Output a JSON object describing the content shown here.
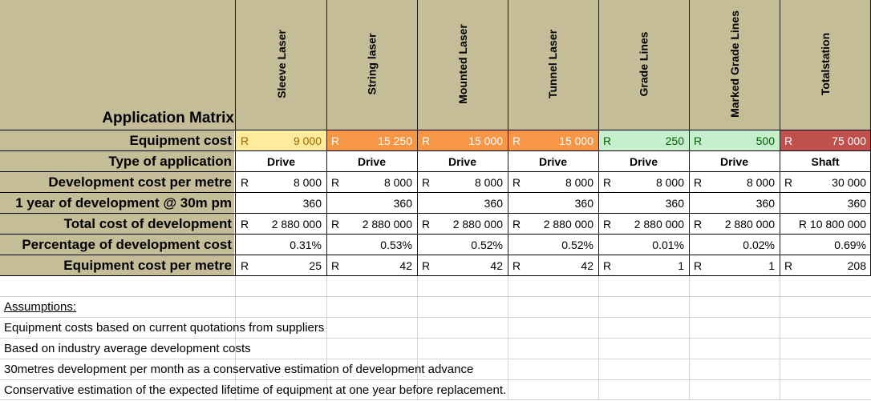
{
  "title": "Application Matrix",
  "columns": [
    {
      "name": "Sleeve Laser",
      "cost_r": "R",
      "cost": "9 000",
      "type": "Drive",
      "dev_r": "R",
      "dev": "8 000",
      "year": "360",
      "total_r": "R",
      "total": "2 880 000",
      "pct": "0.31%",
      "per_r": "R",
      "per": "25",
      "cost_bg": "#ffeb9c",
      "cost_fg": "#9c6500"
    },
    {
      "name": "String laser",
      "cost_r": "R",
      "cost": "15 250",
      "type": "Drive",
      "dev_r": "R",
      "dev": "8 000",
      "year": "360",
      "total_r": "R",
      "total": "2 880 000",
      "pct": "0.53%",
      "per_r": "R",
      "per": "42",
      "cost_bg": "#f79646",
      "cost_fg": "#ffffff"
    },
    {
      "name": "Mounted Laser",
      "cost_r": "R",
      "cost": "15 000",
      "type": "Drive",
      "dev_r": "R",
      "dev": "8 000",
      "year": "360",
      "total_r": "R",
      "total": "2 880 000",
      "pct": "0.52%",
      "per_r": "R",
      "per": "42",
      "cost_bg": "#f79646",
      "cost_fg": "#ffffff"
    },
    {
      "name": "Tunnel Laser",
      "cost_r": "R",
      "cost": "15 000",
      "type": "Drive",
      "dev_r": "R",
      "dev": "8 000",
      "year": "360",
      "total_r": "R",
      "total": "2 880 000",
      "pct": "0.52%",
      "per_r": "R",
      "per": "42",
      "cost_bg": "#f79646",
      "cost_fg": "#ffffff"
    },
    {
      "name": "Grade Lines",
      "cost_r": "R",
      "cost": "250",
      "type": "Drive",
      "dev_r": "R",
      "dev": "8 000",
      "year": "360",
      "total_r": "R",
      "total": "2 880 000",
      "pct": "0.01%",
      "per_r": "R",
      "per": "1",
      "cost_bg": "#c6efce",
      "cost_fg": "#006100"
    },
    {
      "name": "Marked Grade Lines",
      "cost_r": "R",
      "cost": "500",
      "type": "Drive",
      "dev_r": "R",
      "dev": "8 000",
      "year": "360",
      "total_r": "R",
      "total": "2 880 000",
      "pct": "0.02%",
      "per_r": "R",
      "per": "1",
      "cost_bg": "#c6efce",
      "cost_fg": "#006100"
    },
    {
      "name": "Totalstation",
      "cost_r": "R",
      "cost": "75 000",
      "type": "Shaft",
      "dev_r": "R",
      "dev": "30 000",
      "year": "360",
      "total_r": "",
      "total": "R 10 800 000",
      "pct": "0.69%",
      "per_r": "R",
      "per": "208",
      "cost_bg": "#c0504d",
      "cost_fg": "#ffffff"
    }
  ],
  "rows": {
    "equipment_cost": "Equipment cost",
    "type": "Type of application",
    "dev_cost": "Development cost per metre",
    "year_dev": "1 year of development @ 30m pm",
    "total_cost": "Total cost of development",
    "percentage": "Percentage of development cost",
    "per_metre": "Equipment cost per metre"
  },
  "assumptions": {
    "heading": "Assumptions:",
    "items": [
      "Equipment costs based on current quotations from suppliers",
      "Based on industry average development costs",
      "30metres development per month as a conservative estimation of development advance",
      "Conservative estimation of the expected lifetime of equipment at one year before replacement."
    ]
  },
  "colors": {
    "header_bg": "#c4bd97"
  }
}
